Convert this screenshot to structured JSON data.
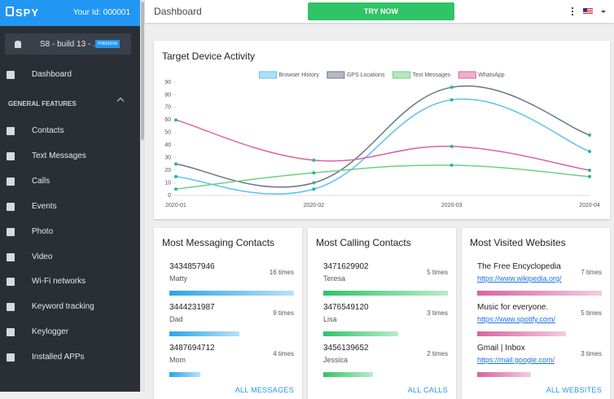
{
  "sidebar": {
    "logo": "SPY",
    "user_id": "Your Id: 000001",
    "device": "S8 - build 13 - ...",
    "badge": "PREMIUM",
    "dashboard": "Dashboard",
    "section": "GENERAL FEATURES",
    "items": [
      "Contacts",
      "Text Messages",
      "Calls",
      "Events",
      "Photo",
      "Video",
      "Wi-Fi networks",
      "Keyword tracking",
      "Keylogger",
      "Installed APPs"
    ]
  },
  "header": {
    "title": "Dashboard",
    "button": "TRY NOW"
  },
  "chart_data": {
    "type": "line",
    "title": "Target Device Activity",
    "categories": [
      "2020-01",
      "2020-02",
      "2020-03",
      "2020-04"
    ],
    "series": [
      {
        "name": "Browser History",
        "color": "#5cc3f0",
        "values": [
          15,
          5,
          76,
          35
        ]
      },
      {
        "name": "GPS Locations",
        "color": "#6b7585",
        "values": [
          25,
          10,
          86,
          48
        ]
      },
      {
        "name": "Text Messages",
        "color": "#6fcf7f",
        "values": [
          5,
          18,
          24,
          15
        ]
      },
      {
        "name": "WhatsApp",
        "color": "#d9649f",
        "values": [
          60,
          28,
          39,
          20
        ]
      }
    ],
    "point_color": "#27b3a0",
    "ylim": [
      0,
      90
    ],
    "yticks": [
      0,
      10,
      20,
      30,
      40,
      50,
      60,
      70,
      80,
      90
    ],
    "grid": false,
    "legend": "top"
  },
  "cards": [
    {
      "title": "Most Messaging Contacts",
      "color": "#2aa5ea",
      "link": "ALL MESSAGES",
      "entries": [
        {
          "primary": "3434857946",
          "secondary": "Matty",
          "count": 16,
          "count_label": "16 times"
        },
        {
          "primary": "3444231987",
          "secondary": "Dad",
          "count": 9,
          "count_label": "9 times"
        },
        {
          "primary": "3487694712",
          "secondary": "Mom",
          "count": 4,
          "count_label": "4 times"
        }
      ]
    },
    {
      "title": "Most Calling Contacts",
      "color": "#2fc466",
      "link": "ALL CALLS",
      "entries": [
        {
          "primary": "3471629902",
          "secondary": "Teresa",
          "count": 5,
          "count_label": "5 times"
        },
        {
          "primary": "3476549120",
          "secondary": "Lisa",
          "count": 3,
          "count_label": "3 times"
        },
        {
          "primary": "3456139652",
          "secondary": "Jessica",
          "count": 2,
          "count_label": "2 times"
        }
      ]
    },
    {
      "title": "Most Visited Websites",
      "color": "#d9649f",
      "link": "ALL WEBSITES",
      "entries": [
        {
          "primary": "The Free Encyclopedia",
          "url": "https://www.wikipedia.org/",
          "count": 7,
          "count_label": "7 times"
        },
        {
          "primary": "Music for everyone.",
          "url": "https://www.spotify.com/",
          "count": 5,
          "count_label": "5 times"
        },
        {
          "primary": "Gmail | Inbox",
          "url": "https://mail.google.com/",
          "count": 3,
          "count_label": "3 times"
        }
      ]
    }
  ]
}
